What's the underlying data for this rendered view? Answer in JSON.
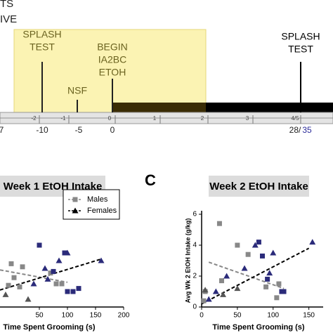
{
  "timeline": {
    "header_fragments": [
      "TS",
      "IVE"
    ],
    "events": [
      {
        "lines": [
          "SPLASH",
          "TEST"
        ]
      },
      {
        "lines": [
          "NSF"
        ]
      },
      {
        "lines": [
          "BEGIN",
          "IA2BC",
          "ETOH"
        ]
      },
      {
        "lines": [
          "SPLASH",
          "TEST"
        ]
      }
    ],
    "week_ticks": [
      "-2",
      "-1",
      "0",
      "1",
      "2",
      "3",
      "4/5"
    ],
    "day_labels": [
      "7",
      "-10",
      "-5",
      "0"
    ],
    "day_last": [
      "28/",
      "35"
    ]
  },
  "panel_label": "C",
  "chart_data": [
    {
      "type": "scatter",
      "title": "Week 1 EtOH Intake",
      "xlabel": "Time Spent Grooming (s)",
      "xlim": [
        -20,
        200
      ],
      "xticks": [
        50,
        100,
        150,
        200
      ],
      "ylim": [
        0,
        6
      ],
      "legend": true,
      "series": [
        {
          "name": "Males",
          "marker": "square",
          "color": "#888888",
          "x": [
            0,
            -5,
            15,
            20,
            70,
            80,
            90,
            5,
            50,
            75,
            95,
            110,
            120,
            100
          ],
          "y": [
            2.8,
            1.4,
            1.3,
            2.6,
            2.2,
            1.5,
            1.5,
            1.9,
            4,
            2.3,
            3.5,
            1,
            1.2,
            1
          ],
          "colors": [
            "#888888",
            "#888888",
            "#888888",
            "#888888",
            "#888888",
            "#888888",
            "#888888",
            "#888888",
            "#2b2b7a",
            "#2b2b7a",
            "#2b2b7a",
            "#2b2b7a",
            "#2b2b7a",
            "#2b2b7a"
          ]
        },
        {
          "name": "Females",
          "marker": "triangle",
          "color": "#000000",
          "x": [
            40,
            60,
            85,
            100,
            160,
            -10,
            30,
            65
          ],
          "y": [
            1.5,
            2.5,
            3,
            3.5,
            3,
            0.8,
            0.5,
            1.8
          ],
          "colors": [
            "#2b2b7a",
            "#2b2b7a",
            "#2b2b7a",
            "#2b2b7a",
            "#2b2b7a",
            "#555555",
            "#555555",
            "#2b2b7a"
          ]
        }
      ],
      "trend_lines": [
        {
          "color": "#888888",
          "x": [
            -20,
            100
          ],
          "y": [
            2.4,
            1.6
          ]
        },
        {
          "color": "#000000",
          "x": [
            -20,
            160
          ],
          "y": [
            1.1,
            3.1
          ]
        }
      ]
    },
    {
      "type": "scatter",
      "title": "Week 2 EtOH Intake",
      "xlabel": "Time Spent Grooming (s)",
      "ylabel": "Avg Wk 2 EtOH Intake (g/kg)",
      "xlim": [
        0,
        170
      ],
      "xticks": [
        0,
        50,
        100,
        150
      ],
      "ylim": [
        0,
        6
      ],
      "yticks": [
        0,
        2,
        4,
        6
      ],
      "legend": false,
      "series": [
        {
          "name": "Males",
          "marker": "square",
          "color": "#888888",
          "x": [
            25,
            50,
            5,
            3,
            28,
            65,
            90,
            108,
            105,
            80,
            85,
            92,
            112,
            115
          ],
          "y": [
            5.4,
            4,
            1,
            0.4,
            1.7,
            3.4,
            1.3,
            1.5,
            0.6,
            4.2,
            3.3,
            1.8,
            1,
            1
          ],
          "colors": [
            "#888888",
            "#888888",
            "#888888",
            "#888888",
            "#888888",
            "#888888",
            "#888888",
            "#888888",
            "#888888",
            "#2b2b7a",
            "#2b2b7a",
            "#2b2b7a",
            "#2b2b7a",
            "#2b2b7a"
          ]
        },
        {
          "name": "Females",
          "marker": "triangle",
          "color": "#000000",
          "x": [
            10,
            20,
            35,
            60,
            75,
            95,
            100,
            155,
            30,
            50,
            5
          ],
          "y": [
            0.5,
            1,
            2,
            2.5,
            4,
            2.2,
            3.5,
            4.2,
            0.8,
            1.2,
            1.1
          ],
          "colors": [
            "#2b2b7a",
            "#2b2b7a",
            "#2b2b7a",
            "#2b2b7a",
            "#2b2b7a",
            "#2b2b7a",
            "#2b2b7a",
            "#2b2b7a",
            "#555555",
            "#555555",
            "#555555"
          ]
        }
      ],
      "trend_lines": [
        {
          "color": "#888888",
          "x": [
            10,
            115
          ],
          "y": [
            2.9,
            1.2
          ]
        },
        {
          "color": "#000000",
          "x": [
            0,
            150
          ],
          "y": [
            0.2,
            3.8
          ]
        }
      ]
    }
  ]
}
